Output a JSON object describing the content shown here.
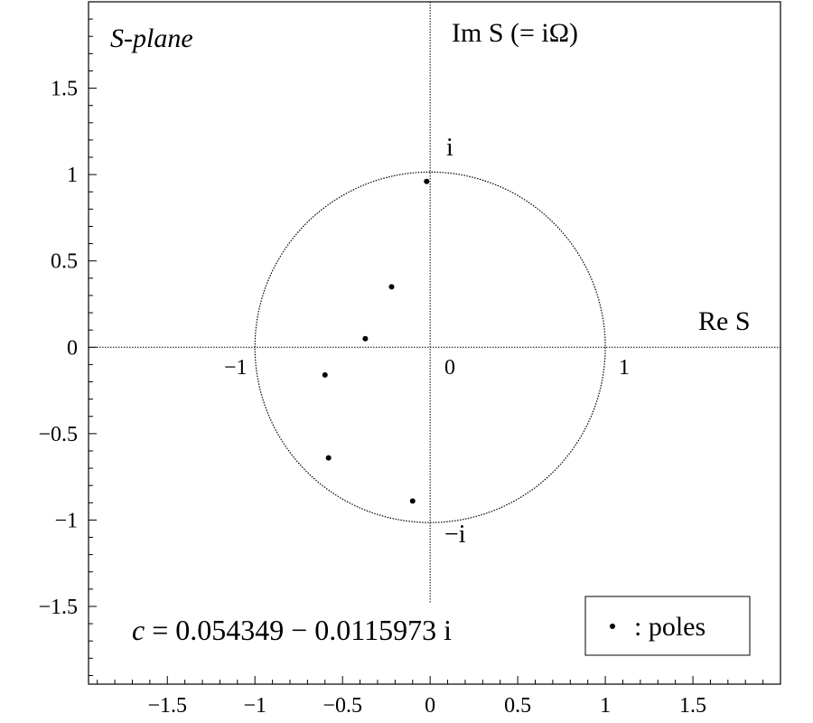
{
  "chart_data": {
    "type": "scatter",
    "title": "S-plane",
    "xlabel": "Re S",
    "ylabel": "Im S (= iΩ)",
    "xlim": [
      -1.95,
      2.0
    ],
    "ylim": [
      -1.95,
      2.0
    ],
    "x_ticks": [
      "-1.5",
      "-1",
      "-0.5",
      "0",
      "0.5",
      "1",
      "1.5"
    ],
    "y_ticks": [
      "1.5",
      "1",
      "0.5",
      "0",
      "-0.5",
      "-1",
      "-1.5"
    ],
    "tick_values": [
      -1.5,
      -1.0,
      -0.5,
      0,
      0.5,
      1.0,
      1.5
    ],
    "unit_circle": {
      "center": [
        0,
        0
      ],
      "radius": 1,
      "style": "dotted"
    },
    "axis_annotations": {
      "plus_i": "i",
      "minus_i": "−i",
      "minus_one": "−1",
      "zero": "0",
      "one": "1"
    },
    "poles": [
      {
        "x": -0.02,
        "y": 0.96
      },
      {
        "x": -0.22,
        "y": 0.35
      },
      {
        "x": -0.37,
        "y": 0.05
      },
      {
        "x": -0.6,
        "y": -0.16
      },
      {
        "x": -0.58,
        "y": -0.64
      },
      {
        "x": -0.1,
        "y": -0.89
      }
    ],
    "constant_label": {
      "name": "c",
      "value": "= 0.054349 − 0.0115973 i"
    },
    "legend": {
      "marker": "•",
      "text": ": poles",
      "position": "bottom-right"
    },
    "grid": false
  }
}
